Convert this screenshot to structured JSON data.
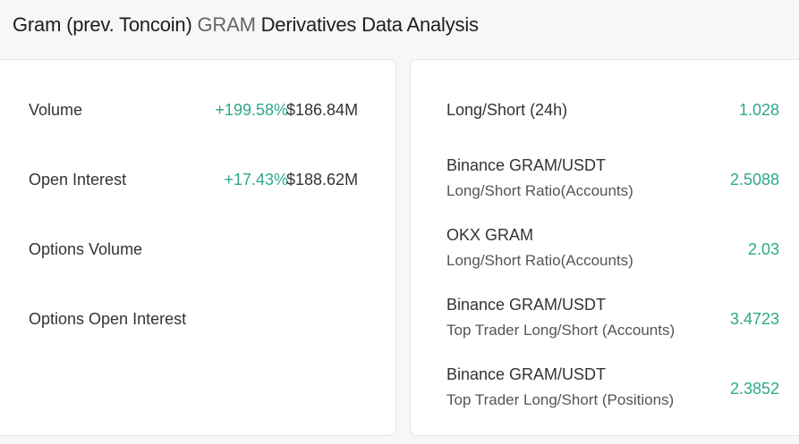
{
  "header": {
    "title_prefix": "Gram (prev. Toncoin) ",
    "ticker": "GRAM",
    "title_suffix": " Derivatives Data Analysis"
  },
  "left_panel": {
    "rows": [
      {
        "label": "Volume",
        "change": "+199.58%",
        "value": "$186.84M"
      },
      {
        "label": "Open Interest",
        "change": "+17.43%",
        "value": "$188.62M"
      },
      {
        "label": "Options Volume",
        "change": "",
        "value": ""
      },
      {
        "label": "Options Open Interest",
        "change": "",
        "value": ""
      }
    ]
  },
  "right_panel": {
    "rows": [
      {
        "title": "Long/Short (24h)",
        "subtitle": "",
        "value": "1.028"
      },
      {
        "title": "Binance GRAM/USDT",
        "subtitle": "Long/Short Ratio(Accounts)",
        "value": "2.5088"
      },
      {
        "title": "OKX GRAM",
        "subtitle": "Long/Short Ratio(Accounts)",
        "value": "2.03"
      },
      {
        "title": "Binance GRAM/USDT",
        "subtitle": "Top Trader Long/Short (Accounts)",
        "value": "3.4723"
      },
      {
        "title": "Binance GRAM/USDT",
        "subtitle": "Top Trader Long/Short (Positions)",
        "value": "2.3852"
      }
    ]
  },
  "colors": {
    "positive": "#2ea88a",
    "text": "#333333",
    "background": "#f7f7f7"
  }
}
